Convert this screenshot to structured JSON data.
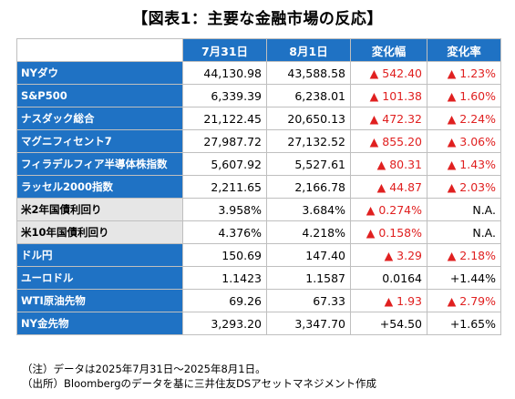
{
  "title": "【図表1：主要な金融市場の反応】",
  "headers": [
    "7月31日",
    "8月1日",
    "変化幅",
    "変化率"
  ],
  "rows": [
    {
      "name": "NYダウ",
      "v1": "44,130.98",
      "v2": "43,588.58",
      "change": "▲ 542.40",
      "rate": "▲ 1.23%",
      "change_up": true,
      "rate_up": true,
      "ds": false
    },
    {
      "name": "S&P500",
      "v1": "6,339.39",
      "v2": "6,238.01",
      "change": "▲ 101.38",
      "rate": "▲ 1.60%",
      "change_up": true,
      "rate_up": true,
      "ds": false
    },
    {
      "name": "ナスダック総合",
      "v1": "21,122.45",
      "v2": "20,650.13",
      "change": "▲ 472.32",
      "rate": "▲ 2.24%",
      "change_up": true,
      "rate_up": true,
      "ds": false
    },
    {
      "name": "マグニフィセント7",
      "v1": "27,987.72",
      "v2": "27,132.52",
      "change": "▲ 855.20",
      "rate": "▲ 3.06%",
      "change_up": true,
      "rate_up": true,
      "ds": false
    },
    {
      "name": "フィラデルフィア半導体株指数",
      "v1": "5,607.92",
      "v2": "5,527.61",
      "change": "▲ 80.31",
      "rate": "▲ 1.43%",
      "change_up": true,
      "rate_up": true,
      "ds": false
    },
    {
      "name": "ラッセル2000指数",
      "v1": "2,211.65",
      "v2": "2,166.78",
      "change": "▲ 44.87",
      "rate": "▲ 2.03%",
      "change_up": true,
      "rate_up": true,
      "ds": false
    },
    {
      "name": "米2年国債利回り",
      "v1": "3.958%",
      "v2": "3.684%",
      "change": "▲ 0.274%",
      "rate": "N.A.",
      "change_up": true,
      "rate_up": false,
      "ds": true
    },
    {
      "name": "米10年国債利回り",
      "v1": "4.376%",
      "v2": "4.218%",
      "change": "▲ 0.158%",
      "rate": "N.A.",
      "change_up": true,
      "rate_up": false,
      "ds": true
    },
    {
      "name": "ドル円",
      "v1": "150.69",
      "v2": "147.40",
      "change": "▲ 3.29",
      "rate": "▲ 2.18%",
      "change_up": true,
      "rate_up": true,
      "ds": false
    },
    {
      "name": "ユーロドル",
      "v1": "1.1423",
      "v2": "1.1587",
      "change": "0.0164",
      "rate": "+1.44%",
      "change_up": false,
      "rate_up": false,
      "ds": false
    },
    {
      "name": "WTI原油先物",
      "v1": "69.26",
      "v2": "67.33",
      "change": "▲ 1.93",
      "rate": "▲ 2.79%",
      "change_up": true,
      "rate_up": true,
      "ds": false
    },
    {
      "name": "NY金先物",
      "v1": "3,293.20",
      "v2": "3,347.70",
      "change": "+54.50",
      "rate": "+1.65%",
      "change_up": false,
      "rate_up": false,
      "ds": false
    }
  ],
  "notes": [
    "（注）データは2025年7月31日～2025年8月1日。",
    "（出所）Bloombergのデータを基に三井住友DSアセットマネジメント作成"
  ],
  "colors": {
    "header_blue": "#1f72c4",
    "negative_red": "#e02020",
    "gray_label": "#e6e6e6"
  }
}
